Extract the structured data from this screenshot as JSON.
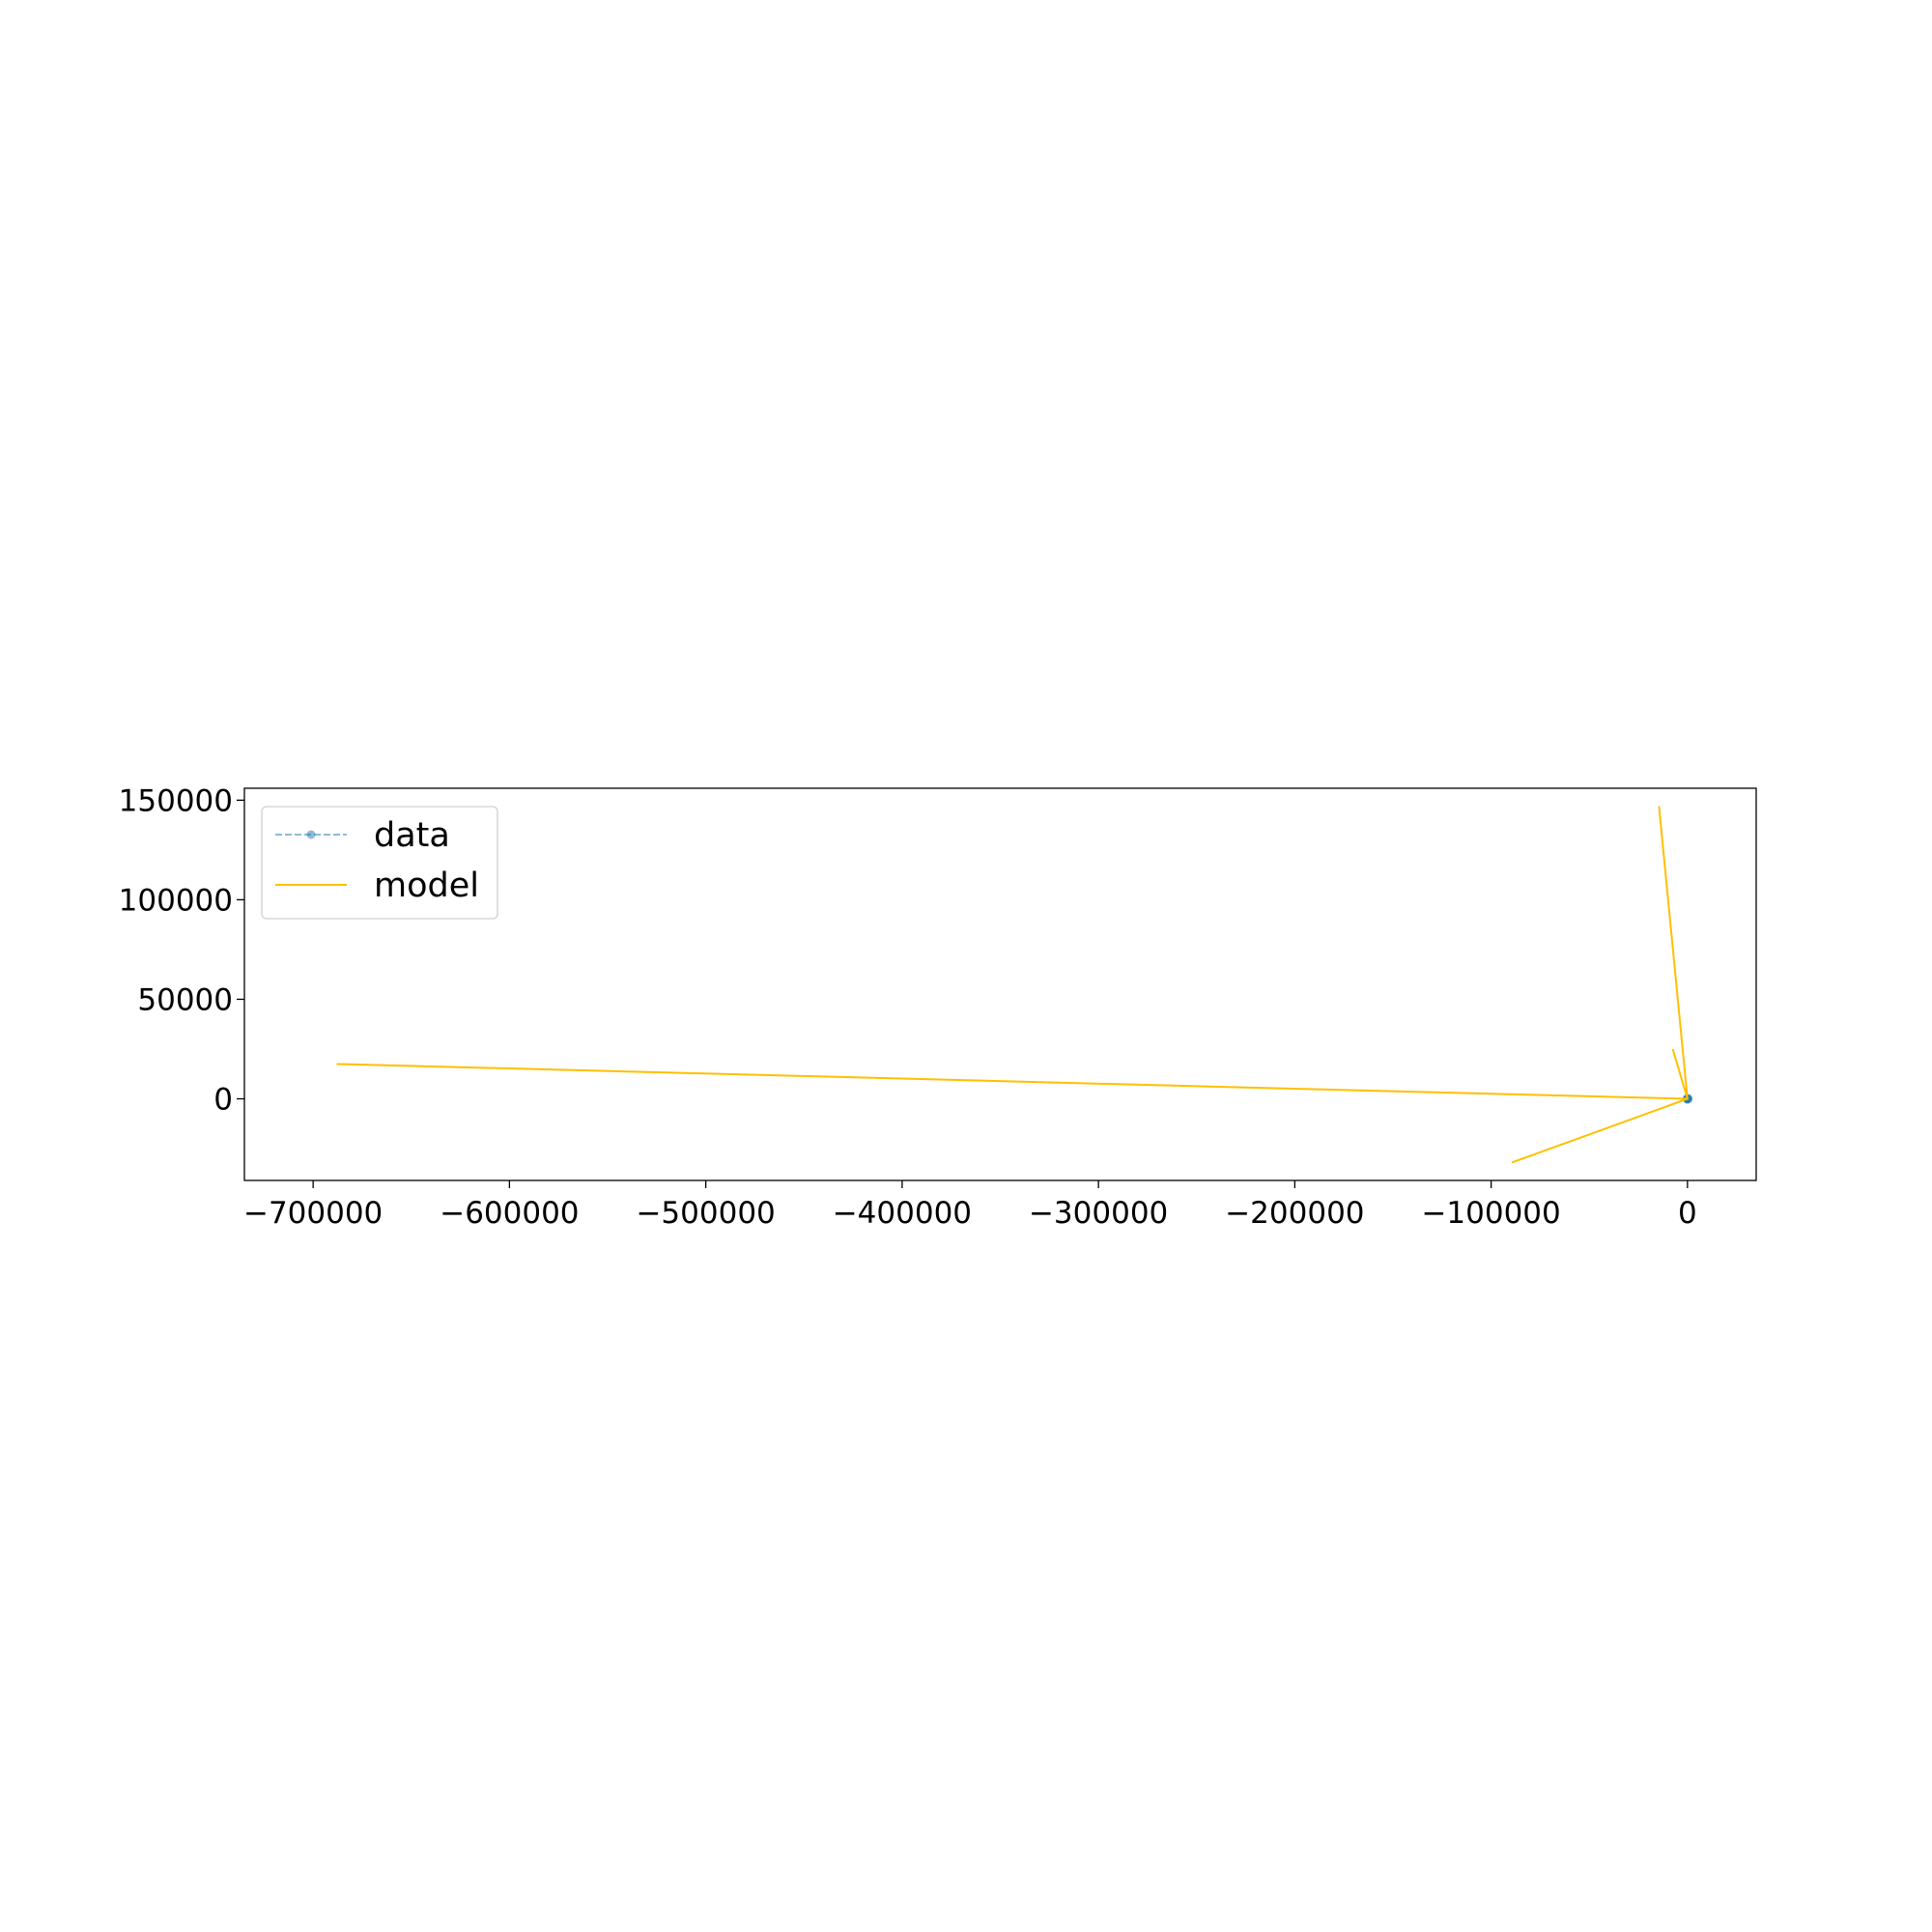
{
  "colors": {
    "data": "#1f77b4",
    "model": "#ffbf00",
    "axis": "#000000",
    "legend_border": "#d0d0d0",
    "background": "#ffffff"
  },
  "chart_data": {
    "type": "line",
    "title": "",
    "xlabel": "",
    "ylabel": "",
    "xlim": [
      -735000,
      35000
    ],
    "ylim": [
      -41000,
      156000
    ],
    "grid": false,
    "legend": {
      "placement": "top-left",
      "entries": [
        {
          "label": "data",
          "style": "dashed line with circle markers"
        },
        {
          "label": "model",
          "style": "solid line"
        }
      ]
    },
    "x_ticks": [
      {
        "value": -700000,
        "label": "−700000"
      },
      {
        "value": -600000,
        "label": "−600000"
      },
      {
        "value": -500000,
        "label": "−500000"
      },
      {
        "value": -400000,
        "label": "−400000"
      },
      {
        "value": -300000,
        "label": "−300000"
      },
      {
        "value": -200000,
        "label": "−200000"
      },
      {
        "value": -100000,
        "label": "−100000"
      },
      {
        "value": 0,
        "label": "0"
      }
    ],
    "y_ticks": [
      {
        "value": 0,
        "label": "0"
      },
      {
        "value": 50000,
        "label": "50000"
      },
      {
        "value": 100000,
        "label": "100000"
      },
      {
        "value": 150000,
        "label": "150000"
      }
    ],
    "series": [
      {
        "name": "data",
        "kind": "data",
        "points": [
          [
            0,
            0
          ],
          [
            400,
            200
          ],
          [
            -300,
            -150
          ],
          [
            200,
            -300
          ],
          [
            -100,
            250
          ]
        ]
      },
      {
        "name": "model",
        "kind": "model",
        "points": [
          [
            -89500,
            -32000
          ],
          [
            0,
            0
          ],
          [
            -7500,
            25000
          ],
          [
            0,
            0
          ],
          [
            -14500,
            147000
          ],
          [
            0,
            0
          ],
          [
            -688000,
            17500
          ]
        ]
      }
    ]
  }
}
